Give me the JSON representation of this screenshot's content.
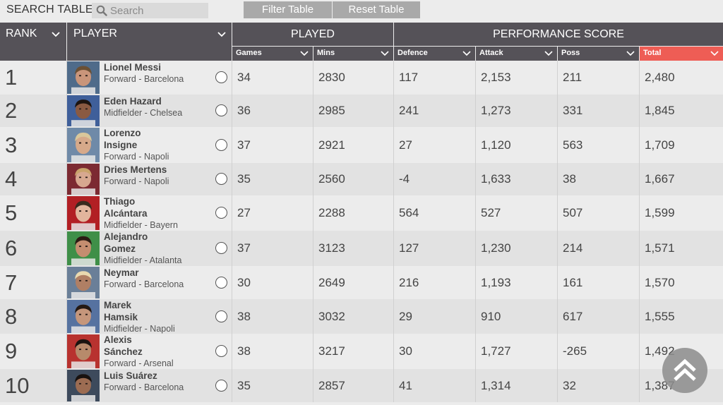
{
  "toolbar": {
    "search_label": "SEARCH TABLE",
    "search_placeholder": "Search",
    "filter_label": "Filter Table",
    "reset_label": "Reset Table"
  },
  "header": {
    "rank": "RANK",
    "player": "PLAYER",
    "played": "PLAYED",
    "performance": "PERFORMANCE SCORE",
    "games": "Games",
    "mins": "Mins",
    "defence": "Defence",
    "attack": "Attack",
    "poss": "Poss",
    "total": "Total"
  },
  "colors": {
    "header_bg": "#555258",
    "active_sort": "#ee5d55"
  },
  "players": [
    {
      "rank": "1",
      "name1": "Lionel Messi",
      "name2": "",
      "meta": "Forward - Barcelona",
      "games": "34",
      "mins": "2830",
      "defence": "117",
      "attack": "2,153",
      "poss": "211",
      "total": "2,480"
    },
    {
      "rank": "2",
      "name1": "Eden Hazard",
      "name2": "",
      "meta": "Midfielder - Chelsea",
      "games": "36",
      "mins": "2985",
      "defence": "241",
      "attack": "1,273",
      "poss": "331",
      "total": "1,845"
    },
    {
      "rank": "3",
      "name1": "Lorenzo",
      "name2": "Insigne",
      "meta": "Forward - Napoli",
      "games": "37",
      "mins": "2921",
      "defence": "27",
      "attack": "1,120",
      "poss": "563",
      "total": "1,709"
    },
    {
      "rank": "4",
      "name1": "Dries Mertens",
      "name2": "",
      "meta": "Forward - Napoli",
      "games": "35",
      "mins": "2560",
      "defence": "-4",
      "attack": "1,633",
      "poss": "38",
      "total": "1,667"
    },
    {
      "rank": "5",
      "name1": "Thiago",
      "name2": "Alcántara",
      "meta": "Midfielder - Bayern",
      "games": "27",
      "mins": "2288",
      "defence": "564",
      "attack": "527",
      "poss": "507",
      "total": "1,599"
    },
    {
      "rank": "6",
      "name1": "Alejandro",
      "name2": "Gomez",
      "meta": "Midfielder - Atalanta",
      "games": "37",
      "mins": "3123",
      "defence": "127",
      "attack": "1,230",
      "poss": "214",
      "total": "1,571"
    },
    {
      "rank": "7",
      "name1": "Neymar",
      "name2": "",
      "meta": "Forward - Barcelona",
      "games": "30",
      "mins": "2649",
      "defence": "216",
      "attack": "1,193",
      "poss": "161",
      "total": "1,570"
    },
    {
      "rank": "8",
      "name1": "Marek",
      "name2": "Hamsik",
      "meta": "Midfielder - Napoli",
      "games": "38",
      "mins": "3032",
      "defence": "29",
      "attack": "910",
      "poss": "617",
      "total": "1,555"
    },
    {
      "rank": "9",
      "name1": "Alexis",
      "name2": "Sánchez",
      "meta": "Forward - Arsenal",
      "games": "38",
      "mins": "3217",
      "defence": "30",
      "attack": "1,727",
      "poss": "-265",
      "total": "1,492"
    },
    {
      "rank": "10",
      "name1": "Luis Suárez",
      "name2": "",
      "meta": "Forward - Barcelona",
      "games": "35",
      "mins": "2857",
      "defence": "41",
      "attack": "1,314",
      "poss": "32",
      "total": "1,387"
    }
  ]
}
